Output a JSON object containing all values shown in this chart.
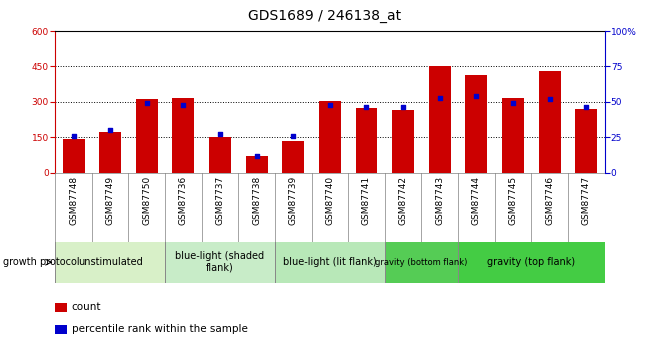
{
  "title": "GDS1689 / 246138_at",
  "samples": [
    "GSM87748",
    "GSM87749",
    "GSM87750",
    "GSM87736",
    "GSM87737",
    "GSM87738",
    "GSM87739",
    "GSM87740",
    "GSM87741",
    "GSM87742",
    "GSM87743",
    "GSM87744",
    "GSM87745",
    "GSM87746",
    "GSM87747"
  ],
  "counts": [
    140,
    170,
    310,
    315,
    150,
    70,
    135,
    305,
    275,
    265,
    450,
    415,
    315,
    430,
    270
  ],
  "percentile_ranks": [
    26,
    30,
    49,
    48,
    27,
    12,
    26,
    48,
    46,
    46,
    53,
    54,
    49,
    52,
    46
  ],
  "ylim_left": [
    0,
    600
  ],
  "ylim_right": [
    0,
    100
  ],
  "yticks_left": [
    0,
    150,
    300,
    450,
    600
  ],
  "yticks_right": [
    0,
    25,
    50,
    75,
    100
  ],
  "bar_color": "#cc0000",
  "dot_color": "#0000cc",
  "plot_bg": "#ffffff",
  "group_data": [
    {
      "start": 0,
      "end": 2,
      "label": "unstimulated",
      "color": "#d8f0c8"
    },
    {
      "start": 3,
      "end": 5,
      "label": "blue-light (shaded\nflank)",
      "color": "#c8ecc8"
    },
    {
      "start": 6,
      "end": 8,
      "label": "blue-light (lit flank)",
      "color": "#b8e8b8"
    },
    {
      "start": 9,
      "end": 10,
      "label": "gravity (bottom flank)",
      "color": "#55cc55"
    },
    {
      "start": 11,
      "end": 14,
      "label": "gravity (top flank)",
      "color": "#44cc44"
    }
  ],
  "legend_count": "count",
  "legend_pct": "percentile rank within the sample",
  "title_fontsize": 10,
  "tick_fontsize": 6.5,
  "label_fontsize": 7.5
}
